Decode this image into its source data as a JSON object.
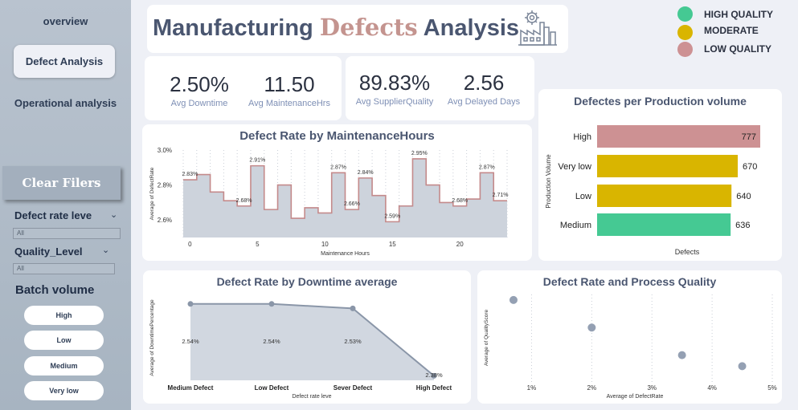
{
  "sidebar": {
    "nav": [
      {
        "label": "overview"
      },
      {
        "label": "Defect Analysis",
        "active": true
      },
      {
        "label": "Operational analysis"
      }
    ],
    "clear_label": "Clear Filers",
    "filters": [
      {
        "label": "Defect rate leve",
        "value": "All"
      },
      {
        "label": "Quality_Level",
        "value": "All"
      }
    ],
    "batch": {
      "title": "Batch volume",
      "options": [
        "High",
        "Low",
        "Medium",
        "Very low"
      ]
    }
  },
  "header": {
    "title_part1": "Manufacturing ",
    "title_accent": "Defects",
    "title_part2": " Analysis",
    "icon": "factory-gear-icon"
  },
  "legend": [
    {
      "label": "HIGH QUALITY",
      "color": "#45c993"
    },
    {
      "label": "MODERATE",
      "color": "#d9b500"
    },
    {
      "label": "LOW QUALITY",
      "color": "#cd9193"
    }
  ],
  "kpis": [
    {
      "value": "2.50%",
      "label": "Avg Downtime"
    },
    {
      "value": "11.50",
      "label": "Avg MaintenanceHrs"
    },
    {
      "value": "89.83%",
      "label": "Avg SupplierQuality"
    },
    {
      "value": "2.56",
      "label": "Avg Delayed Days"
    }
  ],
  "chart_data": [
    {
      "type": "area",
      "title": "Defect Rate by MaintenanceHours",
      "xlabel": "Maintenance Hours",
      "ylabel": "Average of DefectRate",
      "x": [
        0,
        1,
        2,
        3,
        4,
        5,
        6,
        7,
        8,
        9,
        10,
        11,
        12,
        13,
        14,
        15,
        16,
        17,
        18,
        19,
        20,
        21,
        22,
        23
      ],
      "values": [
        2.83,
        2.86,
        2.76,
        2.71,
        2.68,
        2.91,
        2.66,
        2.8,
        2.61,
        2.67,
        2.64,
        2.87,
        2.66,
        2.84,
        2.74,
        2.59,
        2.68,
        2.95,
        2.8,
        2.7,
        2.68,
        2.72,
        2.87,
        2.71
      ],
      "data_labels": [
        {
          "x": 0,
          "text": "2.83%"
        },
        {
          "x": 4,
          "text": "2.68%"
        },
        {
          "x": 5,
          "text": "2.91%"
        },
        {
          "x": 11,
          "text": "2.87%"
        },
        {
          "x": 12,
          "text": "2.66%"
        },
        {
          "x": 13,
          "text": "2.84%"
        },
        {
          "x": 15,
          "text": "2.59%"
        },
        {
          "x": 17,
          "text": "2.95%"
        },
        {
          "x": 20,
          "text": "2.68%"
        },
        {
          "x": 22,
          "text": "2.87%"
        },
        {
          "x": 23,
          "text": "2.71%"
        }
      ],
      "xticks": [
        0,
        5,
        10,
        15,
        20
      ],
      "yticks": [
        "2.6%",
        "2.8%",
        "3.0%"
      ],
      "yticks_values": [
        2.6,
        2.8,
        3.0
      ],
      "ylim": [
        2.5,
        3.0
      ],
      "xlim": [
        0,
        23
      ],
      "colors": {
        "line": "#c48a8b",
        "fill": "#cdd3dc"
      }
    },
    {
      "type": "bar",
      "title": "Defectes per Production volume",
      "xlabel": "Defects",
      "ylabel": "Production Volume",
      "categories": [
        "High",
        "Very low",
        "Low",
        "Medium"
      ],
      "values": [
        777,
        670,
        640,
        636
      ],
      "colors": [
        "#cd9193",
        "#d9b500",
        "#d9b500",
        "#45c993"
      ],
      "xlim": [
        0,
        777
      ]
    },
    {
      "type": "area",
      "title": "Defect Rate by Downtime average",
      "xlabel": "Defect rate leve",
      "ylabel": "Average of DowntimePercentage",
      "categories": [
        "Medium Defect",
        "Low Defect",
        "Sever Defect",
        "High Defect"
      ],
      "values": [
        2.54,
        2.54,
        2.53,
        2.38
      ],
      "data_labels": [
        "2.54%",
        "2.54%",
        "2.53%",
        "2.38%"
      ],
      "ylim": [
        2.37,
        2.545
      ],
      "colors": {
        "line": "#8a96a8",
        "fill": "#d1d7e0"
      }
    },
    {
      "type": "scatter",
      "title": "Defect Rate and Process Quality",
      "xlabel": "Average of DefectRate",
      "ylabel": "Average of QualityScore",
      "x": [
        0.7,
        2.0,
        3.5,
        4.5
      ],
      "y": [
        4,
        3,
        2,
        1.6
      ],
      "xticks": [
        "1%",
        "2%",
        "3%",
        "4%",
        "5%"
      ],
      "xticks_values": [
        1,
        2,
        3,
        4,
        5
      ],
      "xlim": [
        0.5,
        5
      ],
      "ylim": [
        1,
        4.2
      ],
      "colors": {
        "point": "#94a0b3"
      }
    }
  ]
}
